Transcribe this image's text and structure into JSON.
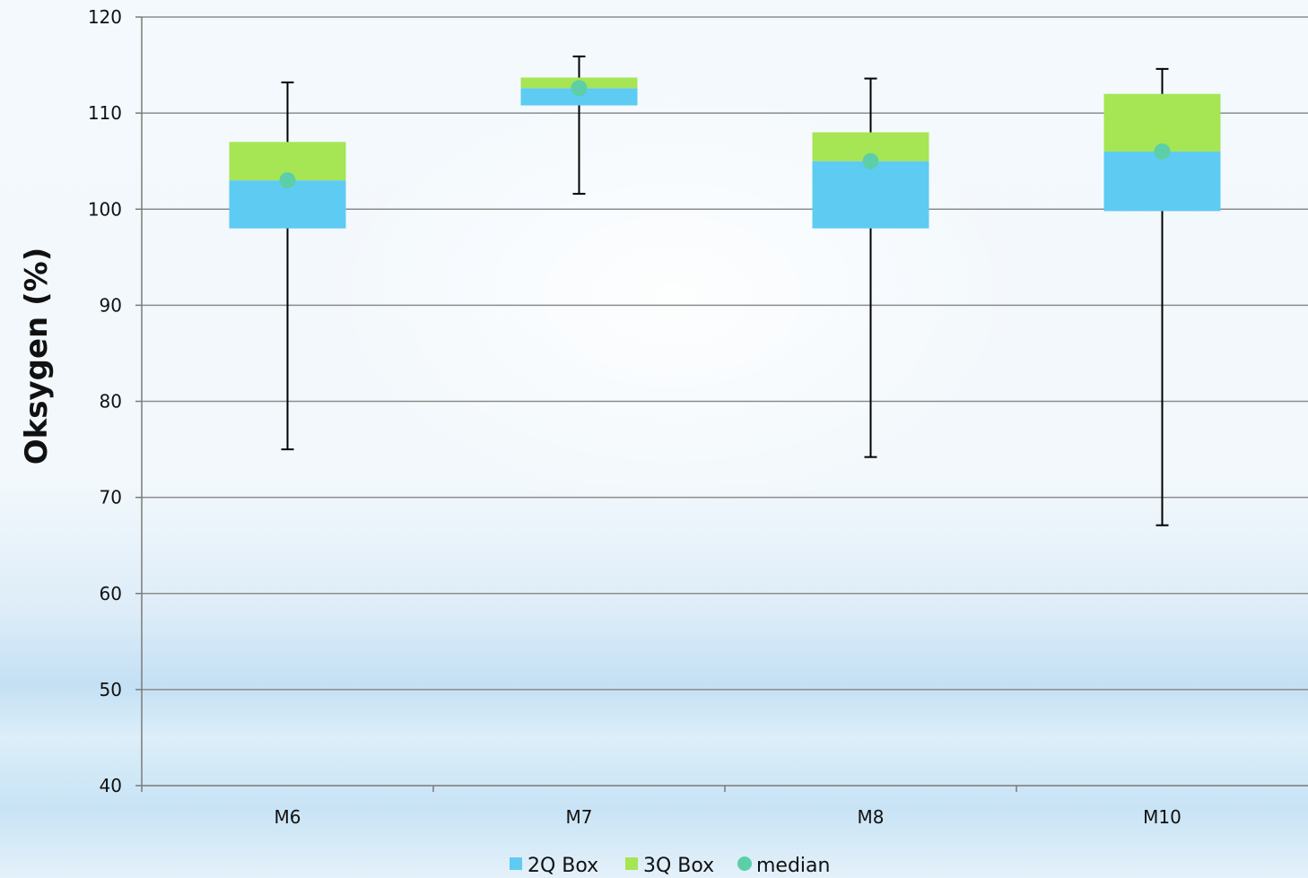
{
  "chart_data": {
    "type": "box",
    "title": "",
    "xlabel": "",
    "ylabel": "Oksygen (%)",
    "ylim": [
      40,
      120
    ],
    "yticks": [
      40,
      50,
      60,
      70,
      80,
      90,
      100,
      110,
      120
    ],
    "grid": true,
    "legend_position": "bottom",
    "categories": [
      "M6",
      "M7",
      "M8",
      "M10"
    ],
    "boxes": [
      {
        "category": "M6",
        "min": 75,
        "q1": 98,
        "median": 103,
        "q3": 107,
        "max": 113.2
      },
      {
        "category": "M7",
        "min": 101.6,
        "q1": 110.8,
        "median": 112.6,
        "q3": 113.7,
        "max": 115.9
      },
      {
        "category": "M8",
        "min": 74.2,
        "q1": 98,
        "median": 105,
        "q3": 108,
        "max": 113.6
      },
      {
        "category": "M10",
        "min": 67.1,
        "q1": 99.8,
        "median": 106,
        "q3": 112,
        "max": 114.6
      }
    ],
    "series": [
      {
        "name": "2Q Box",
        "color": "#5ecbf3"
      },
      {
        "name": "3Q Box",
        "color": "#a6e553"
      },
      {
        "name": "median",
        "color": "#5ccfa8"
      }
    ]
  }
}
